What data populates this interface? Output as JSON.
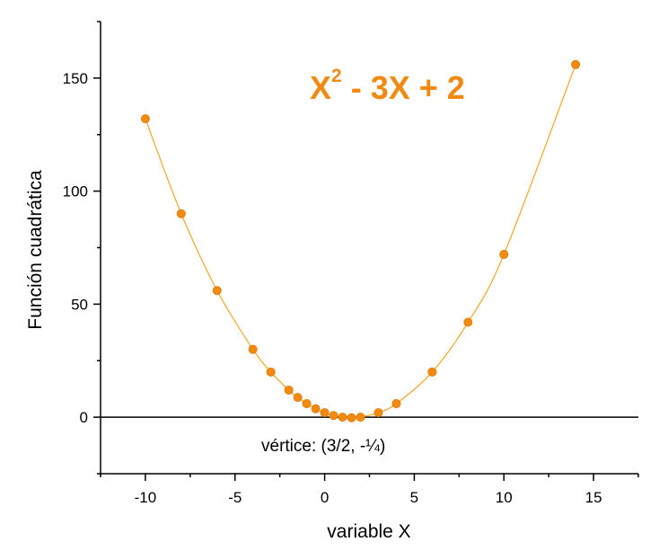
{
  "chart_data": {
    "type": "scatter",
    "title": "",
    "xlabel": "variable X",
    "ylabel": "Función cuadrática",
    "xlim": [
      -12.5,
      17.5
    ],
    "ylim": [
      -25,
      175
    ],
    "xticks": [
      -10,
      -5,
      0,
      5,
      10,
      15
    ],
    "yticks": [
      0,
      50,
      100,
      150
    ],
    "grid": false,
    "formula": {
      "base": "X",
      "exponent": "2",
      "rest": " - 3X + 2"
    },
    "annotation": "vértice: (3/2, -¼)",
    "series": [
      {
        "color": "#f28a12",
        "line_color": "#f5a623",
        "points": [
          {
            "x": -10,
            "y": 132
          },
          {
            "x": -8,
            "y": 90
          },
          {
            "x": -6,
            "y": 56
          },
          {
            "x": -4,
            "y": 30
          },
          {
            "x": -3,
            "y": 20
          },
          {
            "x": -2,
            "y": 12
          },
          {
            "x": -1.5,
            "y": 8.75
          },
          {
            "x": -1,
            "y": 6
          },
          {
            "x": -0.5,
            "y": 3.75
          },
          {
            "x": 0,
            "y": 2
          },
          {
            "x": 0.5,
            "y": 0.75
          },
          {
            "x": 1,
            "y": 0
          },
          {
            "x": 1.5,
            "y": -0.25
          },
          {
            "x": 2,
            "y": 0
          },
          {
            "x": 3,
            "y": 2
          },
          {
            "x": 4,
            "y": 6
          },
          {
            "x": 6,
            "y": 20
          },
          {
            "x": 8,
            "y": 42
          },
          {
            "x": 10,
            "y": 72
          },
          {
            "x": 14,
            "y": 156
          }
        ]
      }
    ]
  }
}
